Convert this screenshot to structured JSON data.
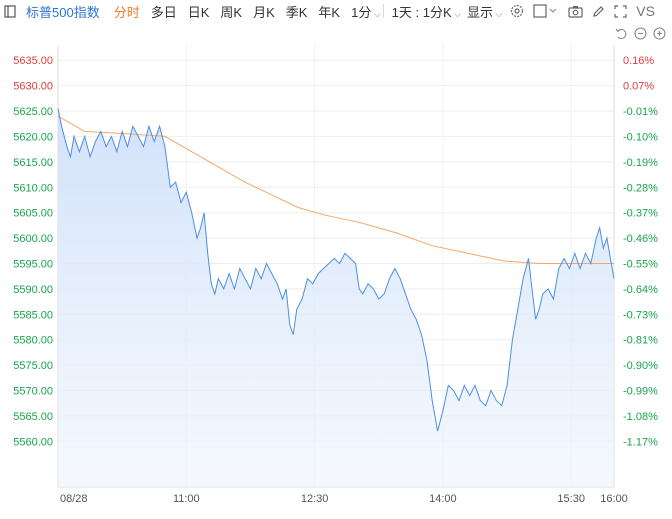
{
  "toolbar": {
    "title": "标普500指数",
    "items": [
      "分时",
      "多日",
      "日K",
      "周K",
      "月K",
      "季K",
      "年K",
      "1分",
      "1天 : 1分K",
      "显示"
    ],
    "active_index": 0,
    "vs_label": "VS"
  },
  "colors": {
    "price_line": "#4a90e2",
    "avg_line": "#f5a76a",
    "up": "#e23c3c",
    "down": "#18a64a",
    "fill": "#dce9fb"
  },
  "chart_data": {
    "type": "line",
    "x_labels": [
      "08/28",
      "11:00",
      "12:30",
      "14:00",
      "15:30",
      "16:00"
    ],
    "y_ticks": [
      5635.0,
      5630.0,
      5625.0,
      5620.0,
      5615.0,
      5610.0,
      5605.0,
      5600.0,
      5595.0,
      5590.0,
      5585.0,
      5580.0,
      5575.0,
      5570.0,
      5565.0,
      5560.0
    ],
    "y_tick_labels": [
      "5635.00",
      "5630.00",
      "5625.00",
      "5620.00",
      "5615.00",
      "5610.00",
      "5605.00",
      "5600.00",
      "5595.00",
      "5590.00",
      "5585.00",
      "5580.00",
      "5575.00",
      "5570.00",
      "5565.00",
      "5560.00"
    ],
    "pct_labels": [
      "0.16%",
      "0.07%",
      "-0.01%",
      "-0.10%",
      "-0.19%",
      "-0.28%",
      "-0.37%",
      "-0.46%",
      "-0.55%",
      "-0.64%",
      "-0.73%",
      "-0.81%",
      "-0.90%",
      "-0.99%",
      "-1.08%",
      "-1.17%"
    ],
    "ylim": [
      5551,
      5638
    ],
    "x_time": [
      "09:30",
      "16:00"
    ],
    "price": [
      [
        0,
        5625.5
      ],
      [
        2,
        5622
      ],
      [
        5,
        5618
      ],
      [
        7,
        5616
      ],
      [
        9,
        5620
      ],
      [
        12,
        5617
      ],
      [
        15,
        5620
      ],
      [
        18,
        5616
      ],
      [
        21,
        5619
      ],
      [
        24,
        5621
      ],
      [
        27,
        5618
      ],
      [
        30,
        5620
      ],
      [
        33,
        5617
      ],
      [
        36,
        5621
      ],
      [
        39,
        5618
      ],
      [
        42,
        5622
      ],
      [
        45,
        5620
      ],
      [
        48,
        5618
      ],
      [
        51,
        5622
      ],
      [
        54,
        5619
      ],
      [
        57,
        5622
      ],
      [
        60,
        5618
      ],
      [
        63,
        5610
      ],
      [
        66,
        5611
      ],
      [
        69,
        5607
      ],
      [
        72,
        5609
      ],
      [
        75,
        5605
      ],
      [
        78,
        5600
      ],
      [
        80,
        5602
      ],
      [
        82,
        5605
      ],
      [
        84,
        5597
      ],
      [
        86,
        5591
      ],
      [
        88,
        5589
      ],
      [
        90,
        5592
      ],
      [
        93,
        5590
      ],
      [
        96,
        5593
      ],
      [
        99,
        5590
      ],
      [
        102,
        5594
      ],
      [
        105,
        5592
      ],
      [
        108,
        5590
      ],
      [
        111,
        5594
      ],
      [
        114,
        5592
      ],
      [
        117,
        5595
      ],
      [
        120,
        5593
      ],
      [
        123,
        5591
      ],
      [
        126,
        5588
      ],
      [
        128,
        5590
      ],
      [
        130,
        5583
      ],
      [
        132,
        5581
      ],
      [
        134,
        5586
      ],
      [
        137,
        5588
      ],
      [
        140,
        5592
      ],
      [
        143,
        5591
      ],
      [
        146,
        5593
      ],
      [
        149,
        5594
      ],
      [
        152,
        5595
      ],
      [
        155,
        5596
      ],
      [
        158,
        5595
      ],
      [
        161,
        5597
      ],
      [
        164,
        5596
      ],
      [
        167,
        5595
      ],
      [
        169,
        5590
      ],
      [
        171,
        5589
      ],
      [
        174,
        5591
      ],
      [
        177,
        5590
      ],
      [
        180,
        5588
      ],
      [
        183,
        5589
      ],
      [
        186,
        5592
      ],
      [
        189,
        5594
      ],
      [
        192,
        5592
      ],
      [
        195,
        5589
      ],
      [
        198,
        5586
      ],
      [
        201,
        5584
      ],
      [
        204,
        5581
      ],
      [
        207,
        5576
      ],
      [
        210,
        5568
      ],
      [
        213,
        5562
      ],
      [
        216,
        5566
      ],
      [
        219,
        5571
      ],
      [
        222,
        5570
      ],
      [
        225,
        5568
      ],
      [
        228,
        5571
      ],
      [
        231,
        5569
      ],
      [
        234,
        5571
      ],
      [
        237,
        5568
      ],
      [
        240,
        5567
      ],
      [
        243,
        5570
      ],
      [
        246,
        5568
      ],
      [
        249,
        5567
      ],
      [
        252,
        5571
      ],
      [
        255,
        5580
      ],
      [
        258,
        5586
      ],
      [
        261,
        5592
      ],
      [
        264,
        5596
      ],
      [
        266,
        5590
      ],
      [
        268,
        5584
      ],
      [
        270,
        5586
      ],
      [
        272,
        5589
      ],
      [
        275,
        5590
      ],
      [
        278,
        5588
      ],
      [
        281,
        5594
      ],
      [
        284,
        5596
      ],
      [
        287,
        5594
      ],
      [
        290,
        5597
      ],
      [
        293,
        5594
      ],
      [
        296,
        5597
      ],
      [
        299,
        5595
      ],
      [
        302,
        5600
      ],
      [
        304,
        5602
      ],
      [
        306,
        5598
      ],
      [
        308,
        5600
      ],
      [
        310,
        5596
      ],
      [
        312,
        5592
      ]
    ],
    "avg": [
      [
        0,
        5624
      ],
      [
        15,
        5621
      ],
      [
        40,
        5620.5
      ],
      [
        60,
        5620
      ],
      [
        75,
        5617
      ],
      [
        90,
        5614
      ],
      [
        105,
        5611
      ],
      [
        120,
        5608.5
      ],
      [
        135,
        5606
      ],
      [
        150,
        5604.5
      ],
      [
        170,
        5603
      ],
      [
        190,
        5601
      ],
      [
        210,
        5598.5
      ],
      [
        230,
        5597
      ],
      [
        250,
        5595.5
      ],
      [
        270,
        5595
      ],
      [
        290,
        5595
      ],
      [
        312,
        5595
      ]
    ]
  }
}
